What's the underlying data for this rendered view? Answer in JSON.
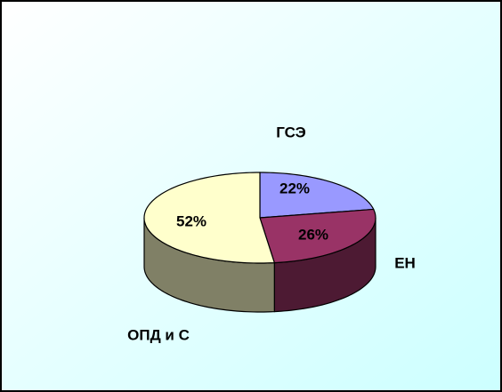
{
  "chart_data": {
    "type": "pie3d",
    "categories": [
      "ГСЭ",
      "ЕН",
      "ОПД и С"
    ],
    "values": [
      22,
      26,
      52
    ],
    "value_labels": [
      "22%",
      "26%",
      "52%"
    ],
    "colors": [
      "#9999ff",
      "#993366",
      "#ffffcc"
    ]
  }
}
